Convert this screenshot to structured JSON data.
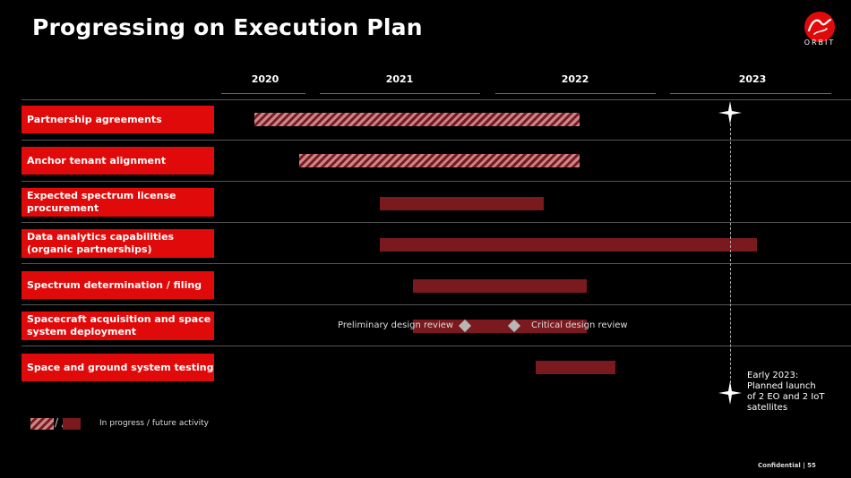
{
  "header": {
    "title": "Progressing on Execution Plan"
  },
  "logo": {
    "script_text": "Virgin",
    "wordmark": "ORBIT",
    "brand_color": "#e10a0a"
  },
  "timeline": {
    "years": [
      "2020",
      "2021",
      "2022",
      "2023"
    ]
  },
  "rows": [
    {
      "label": "Partnership agreements",
      "bar_style": "hatched"
    },
    {
      "label": "Anchor tenant alignment",
      "bar_style": "hatched"
    },
    {
      "label": "Expected spectrum license procurement",
      "bar_style": "solid"
    },
    {
      "label": "Data analytics capabilities (organic partnerships)",
      "bar_style": "solid"
    },
    {
      "label": "Spectrum determination / filing",
      "bar_style": "solid"
    },
    {
      "label": "Spacecraft acquisition and space system deployment",
      "bar_style": "solid"
    },
    {
      "label": "Space and ground system testing",
      "bar_style": "solid"
    }
  ],
  "milestones": {
    "preliminary": "Preliminary design review",
    "critical": "Critical design review"
  },
  "annotation": {
    "text": "Early 2023:\nPlanned launch\n of 2 EO and 2 IoT\nsatellites"
  },
  "legend": {
    "slash": "/ /",
    "text": "In progress / future activity"
  },
  "footer": {
    "text": "Confidential  |  55"
  },
  "colors": {
    "label_bg": "#e10a0a",
    "bar_solid": "#7a1a1e",
    "bar_hatch_light": "#c8868a",
    "diamond": "#b7b7b7"
  }
}
